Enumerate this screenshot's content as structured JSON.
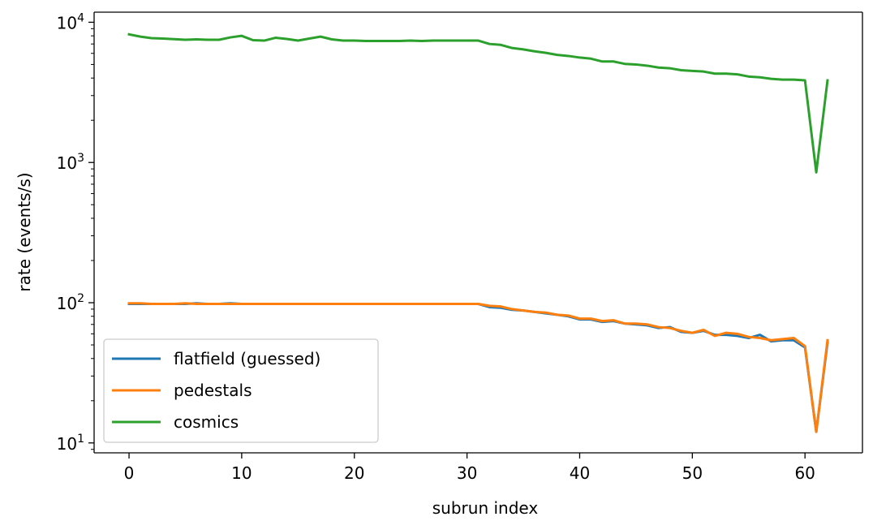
{
  "chart_data": {
    "type": "line",
    "title": "",
    "xlabel": "subrun index",
    "ylabel": "rate (events/s)",
    "yscale": "log",
    "xlim": [
      -3.1,
      65.1
    ],
    "ylim": [
      8.5,
      11800
    ],
    "grid": false,
    "legend_position": "lower-left",
    "x_ticks": [
      0,
      10,
      20,
      30,
      40,
      50,
      60
    ],
    "y_ticks": [
      {
        "base": "10",
        "exp": "1",
        "value": 10
      },
      {
        "base": "10",
        "exp": "2",
        "value": 100
      },
      {
        "base": "10",
        "exp": "3",
        "value": 1000
      },
      {
        "base": "10",
        "exp": "4",
        "value": 10000
      }
    ],
    "series": [
      {
        "name": "flatfield (guessed)",
        "color": "#1f77b4",
        "values": [
          98,
          98,
          98,
          98,
          98,
          98,
          99,
          98,
          98,
          99,
          98,
          98,
          98,
          98,
          98,
          98,
          98,
          98,
          98,
          98,
          98,
          98,
          98,
          98,
          98,
          98,
          98,
          98,
          98,
          98,
          98,
          98,
          93,
          92,
          89,
          88,
          86,
          84,
          82,
          80,
          76,
          76,
          73,
          74,
          71,
          70,
          69,
          66,
          67,
          62,
          61,
          63,
          59,
          59,
          58,
          56,
          59,
          53,
          54,
          54,
          48,
          12,
          52
        ]
      },
      {
        "name": "pedestals",
        "color": "#ff7f0e",
        "values": [
          99,
          99,
          98,
          98,
          98,
          99,
          98,
          98,
          98,
          98,
          98,
          98,
          98,
          98,
          98,
          98,
          98,
          98,
          98,
          98,
          98,
          98,
          98,
          98,
          98,
          98,
          98,
          98,
          98,
          98,
          98,
          98,
          95,
          94,
          90,
          88,
          86,
          85,
          82,
          81,
          77,
          77,
          74,
          75,
          71,
          71,
          70,
          67,
          66,
          63,
          61,
          64,
          58,
          61,
          60,
          57,
          56,
          54,
          55,
          56,
          49,
          12,
          54
        ]
      },
      {
        "name": "cosmics",
        "color": "#2ca02c",
        "values": [
          8200,
          7900,
          7700,
          7650,
          7580,
          7500,
          7550,
          7500,
          7500,
          7800,
          8000,
          7450,
          7400,
          7750,
          7600,
          7400,
          7650,
          7900,
          7550,
          7400,
          7400,
          7350,
          7350,
          7350,
          7350,
          7400,
          7350,
          7400,
          7400,
          7400,
          7400,
          7400,
          7000,
          6900,
          6550,
          6400,
          6200,
          6050,
          5850,
          5750,
          5600,
          5500,
          5250,
          5250,
          5050,
          5000,
          4900,
          4750,
          4700,
          4550,
          4500,
          4450,
          4300,
          4300,
          4250,
          4100,
          4050,
          3950,
          3900,
          3900,
          3850,
          850,
          3850
        ]
      }
    ]
  }
}
